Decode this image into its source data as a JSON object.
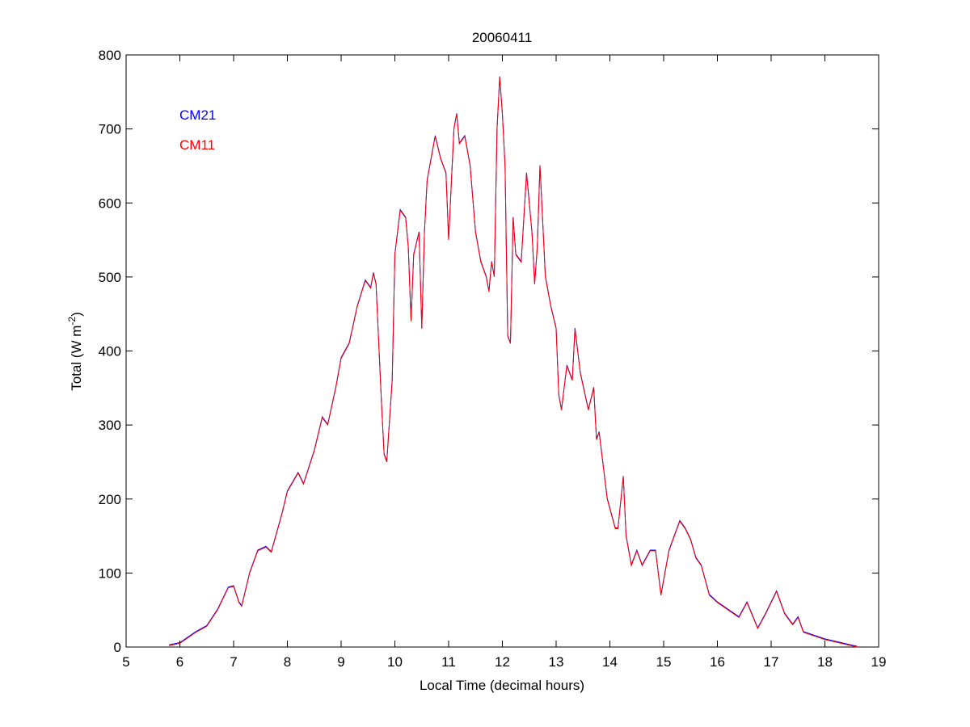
{
  "chart_data": {
    "type": "line",
    "title": "20060411",
    "xlabel": "Local Time (decimal hours)",
    "ylabel_main": "Total (W m",
    "ylabel_sup": "-2",
    "ylabel_close": ")",
    "xlim": [
      5,
      19
    ],
    "ylim": [
      0,
      800
    ],
    "xticks": [
      5,
      6,
      7,
      8,
      9,
      10,
      11,
      12,
      13,
      14,
      15,
      16,
      17,
      18,
      19
    ],
    "yticks": [
      0,
      100,
      200,
      300,
      400,
      500,
      600,
      700,
      800
    ],
    "grid": false,
    "legend_placement": "top-left",
    "series": [
      {
        "name": "CM21",
        "color": "#0000ff"
      },
      {
        "name": "CM11",
        "color": "#ff0000"
      }
    ],
    "x": [
      5.8,
      6.0,
      6.3,
      6.5,
      6.7,
      6.9,
      7.0,
      7.1,
      7.15,
      7.3,
      7.45,
      7.6,
      7.7,
      7.9,
      8.0,
      8.2,
      8.3,
      8.5,
      8.65,
      8.75,
      8.9,
      9.0,
      9.15,
      9.3,
      9.45,
      9.55,
      9.6,
      9.65,
      9.75,
      9.8,
      9.85,
      9.95,
      10.0,
      10.1,
      10.2,
      10.25,
      10.3,
      10.35,
      10.45,
      10.5,
      10.55,
      10.6,
      10.75,
      10.85,
      10.95,
      11.0,
      11.1,
      11.15,
      11.2,
      11.3,
      11.4,
      11.5,
      11.6,
      11.7,
      11.75,
      11.8,
      11.85,
      11.9,
      11.95,
      12.0,
      12.05,
      12.1,
      12.15,
      12.2,
      12.25,
      12.35,
      12.45,
      12.55,
      12.6,
      12.65,
      12.7,
      12.8,
      12.9,
      13.0,
      13.05,
      13.1,
      13.2,
      13.3,
      13.35,
      13.45,
      13.6,
      13.7,
      13.75,
      13.8,
      13.95,
      14.1,
      14.15,
      14.25,
      14.3,
      14.4,
      14.5,
      14.6,
      14.75,
      14.85,
      14.95,
      15.1,
      15.3,
      15.4,
      15.5,
      15.6,
      15.7,
      15.85,
      16.0,
      16.2,
      16.4,
      16.55,
      16.75,
      16.9,
      17.1,
      17.25,
      17.4,
      17.5,
      17.6,
      17.8,
      18.0,
      18.3,
      18.6
    ],
    "values": [
      2,
      5,
      20,
      28,
      50,
      80,
      82,
      60,
      55,
      100,
      130,
      135,
      128,
      180,
      210,
      235,
      220,
      265,
      310,
      300,
      350,
      390,
      410,
      460,
      495,
      485,
      505,
      490,
      330,
      260,
      250,
      360,
      530,
      590,
      580,
      540,
      440,
      530,
      560,
      430,
      560,
      630,
      690,
      660,
      640,
      550,
      700,
      720,
      680,
      690,
      650,
      560,
      520,
      500,
      480,
      520,
      500,
      700,
      770,
      720,
      650,
      420,
      410,
      580,
      530,
      520,
      640,
      560,
      490,
      540,
      650,
      500,
      460,
      430,
      340,
      320,
      380,
      360,
      430,
      370,
      320,
      350,
      280,
      290,
      200,
      160,
      160,
      230,
      150,
      110,
      130,
      110,
      130,
      130,
      70,
      130,
      170,
      160,
      145,
      120,
      110,
      70,
      60,
      50,
      40,
      60,
      25,
      45,
      75,
      45,
      30,
      40,
      20,
      15,
      10,
      5,
      0
    ]
  }
}
